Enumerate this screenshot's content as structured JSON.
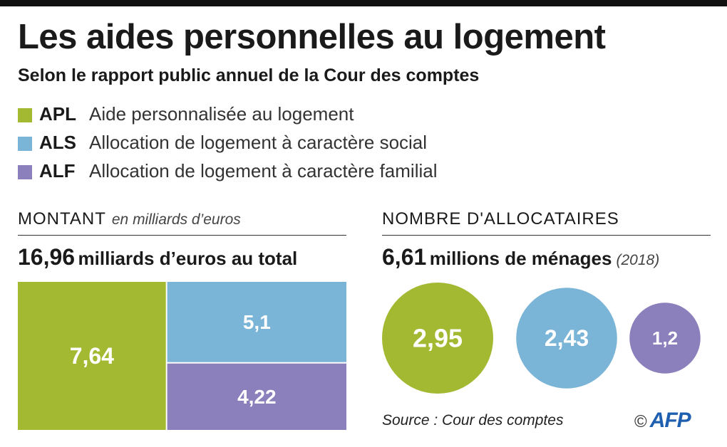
{
  "header": {
    "title": "Les aides personnelles au logement",
    "subtitle": "Selon le rapport public annuel de la Cour des comptes"
  },
  "legend": [
    {
      "code": "APL",
      "label": "Aide personnalisée au logement",
      "color": "#a3b932"
    },
    {
      "code": "ALS",
      "label": "Allocation de logement à caractère social",
      "color": "#7ab4d6"
    },
    {
      "code": "ALF",
      "label": "Allocation de logement à caractère familial",
      "color": "#8b7fbc"
    }
  ],
  "amount_section": {
    "heading": "Montant",
    "unit_note": "en milliards d’euros",
    "total_value": "16,96",
    "total_text": "milliards d’euros au total"
  },
  "recipients_section": {
    "heading": "Nombre d'allocataires",
    "total_value": "6,61",
    "total_text": "millions de ménages",
    "year": "(2018)"
  },
  "chart_data": [
    {
      "type": "treemap",
      "categories": [
        "APL",
        "ALS",
        "ALF"
      ],
      "values": [
        7.64,
        5.1,
        4.22
      ],
      "labels": [
        "7,64",
        "5,1",
        "4,22"
      ],
      "colors": [
        "#a3b932",
        "#7ab4d6",
        "#8b7fbc"
      ],
      "unit": "milliards d’euros"
    },
    {
      "type": "bubble",
      "categories": [
        "APL",
        "ALS",
        "ALF"
      ],
      "values": [
        2.95,
        2.43,
        1.2
      ],
      "labels": [
        "2,95",
        "2,43",
        "1,2"
      ],
      "colors": [
        "#a3b932",
        "#7ab4d6",
        "#8b7fbc"
      ],
      "unit": "millions de ménages"
    }
  ],
  "footer": {
    "source": "Source : Cour des comptes",
    "copyright": "©",
    "logo": "AFP"
  }
}
